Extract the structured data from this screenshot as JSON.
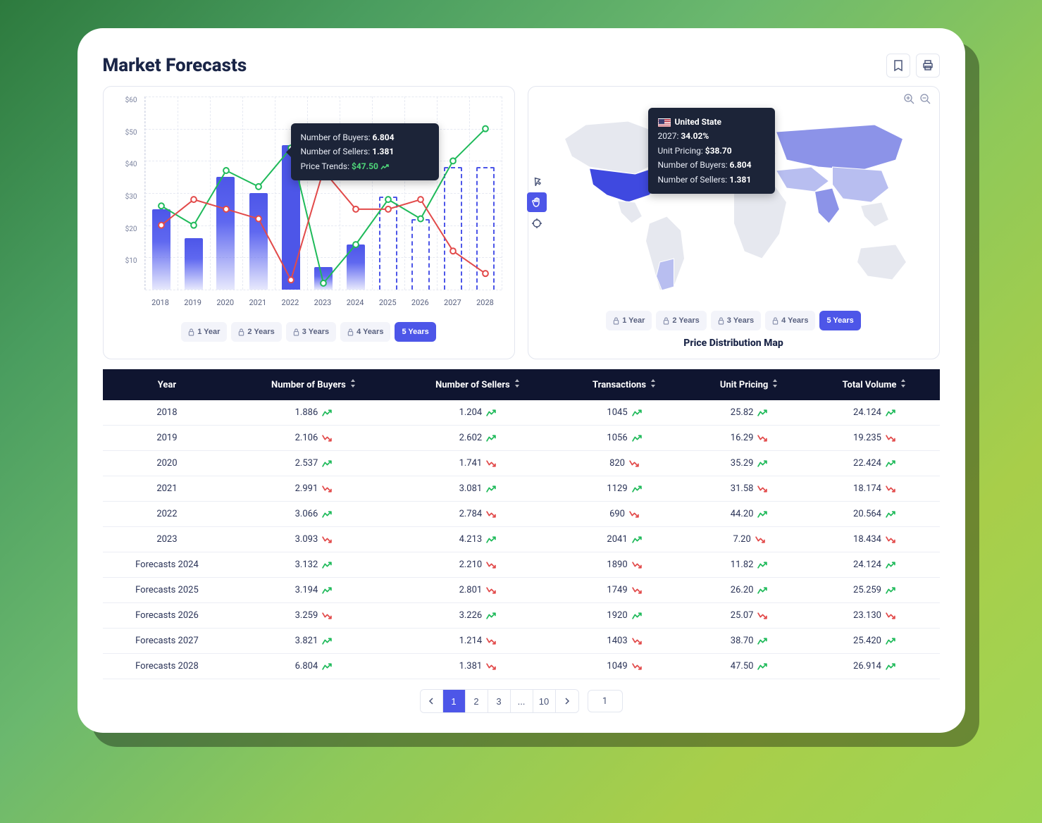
{
  "page": {
    "title": "Market Forecasts"
  },
  "chart": {
    "type": "bar+line",
    "y_ticks": [
      "$60",
      "$50",
      "$40",
      "$30",
      "$20",
      "$10",
      ""
    ],
    "ylim": [
      0,
      60
    ],
    "x_labels": [
      "2018",
      "2019",
      "2020",
      "2021",
      "2022",
      "2023",
      "2024",
      "2025",
      "2026",
      "2027",
      "2028"
    ],
    "bars": [
      25,
      16,
      35,
      30,
      45,
      7,
      14,
      29,
      22,
      38,
      38
    ],
    "future_start_index": 7,
    "active_bar_index": 4,
    "green_line": [
      26,
      20,
      37,
      32,
      44,
      2,
      14,
      28,
      22,
      40,
      50
    ],
    "red_line": [
      20,
      28,
      25,
      22,
      3,
      37,
      25,
      25,
      28,
      12,
      5
    ],
    "bar_color": "#4d56e8",
    "green_color": "#1fba5a",
    "red_color": "#e24a4a",
    "grid_color": "#e6e9f2",
    "tooltip": {
      "l1_label": "Number of Buyers:",
      "l1_val": "6.804",
      "l2_label": "Number of Sellers:",
      "l2_val": "1.381",
      "l3_label": "Price Trends:",
      "l3_val": "$47.50"
    }
  },
  "years_toggle": {
    "options": [
      "1 Year",
      "2 Years",
      "3 Years",
      "4 Years",
      "5 Years"
    ],
    "active_index": 4
  },
  "map": {
    "title": "Price Distribution Map",
    "base_color": "#e6e8ef",
    "shade_light": "#b8bef0",
    "shade_mid": "#8c93e8",
    "shade_highlight": "#3f49e0",
    "tooltip": {
      "country": "United State",
      "year_label": "2027:",
      "year_val": "34.02%",
      "price_label": "Unit Pricing:",
      "price_val": "$38.70",
      "buyers_label": "Number of Buyers:",
      "buyers_val": "6.804",
      "sellers_label": "Number of Sellers:",
      "sellers_val": "1.381"
    }
  },
  "table": {
    "columns": [
      "Year",
      "Number of Buyers",
      "Number of Sellers",
      "Transactions",
      "Unit Pricing",
      "Total Volume"
    ],
    "sortable": [
      false,
      true,
      true,
      true,
      true,
      true
    ],
    "rows": [
      {
        "year": "2018",
        "buyers": "1.886",
        "buyers_t": "up",
        "sellers": "1.204",
        "sellers_t": "up",
        "tx": "1045",
        "tx_t": "up",
        "price": "25.82",
        "price_t": "up",
        "vol": "24.124",
        "vol_t": "up"
      },
      {
        "year": "2019",
        "buyers": "2.106",
        "buyers_t": "down",
        "sellers": "2.602",
        "sellers_t": "up",
        "tx": "1056",
        "tx_t": "up",
        "price": "16.29",
        "price_t": "down",
        "vol": "19.235",
        "vol_t": "down"
      },
      {
        "year": "2020",
        "buyers": "2.537",
        "buyers_t": "up",
        "sellers": "1.741",
        "sellers_t": "down",
        "tx": "820",
        "tx_t": "down",
        "price": "35.29",
        "price_t": "up",
        "vol": "22.424",
        "vol_t": "up"
      },
      {
        "year": "2021",
        "buyers": "2.991",
        "buyers_t": "down",
        "sellers": "3.081",
        "sellers_t": "up",
        "tx": "1129",
        "tx_t": "up",
        "price": "31.58",
        "price_t": "down",
        "vol": "18.174",
        "vol_t": "down"
      },
      {
        "year": "2022",
        "buyers": "3.066",
        "buyers_t": "up",
        "sellers": "2.784",
        "sellers_t": "down",
        "tx": "690",
        "tx_t": "down",
        "price": "44.20",
        "price_t": "up",
        "vol": "20.564",
        "vol_t": "up"
      },
      {
        "year": "2023",
        "buyers": "3.093",
        "buyers_t": "down",
        "sellers": "4.213",
        "sellers_t": "up",
        "tx": "2041",
        "tx_t": "up",
        "price": "7.20",
        "price_t": "down",
        "vol": "18.434",
        "vol_t": "down"
      },
      {
        "year": "Forecasts 2024",
        "buyers": "3.132",
        "buyers_t": "up",
        "sellers": "2.210",
        "sellers_t": "down",
        "tx": "1890",
        "tx_t": "down",
        "price": "11.82",
        "price_t": "up",
        "vol": "24.124",
        "vol_t": "up"
      },
      {
        "year": "Forecasts 2025",
        "buyers": "3.194",
        "buyers_t": "up",
        "sellers": "2.801",
        "sellers_t": "down",
        "tx": "1749",
        "tx_t": "down",
        "price": "26.20",
        "price_t": "up",
        "vol": "25.259",
        "vol_t": "up"
      },
      {
        "year": "Forecasts 2026",
        "buyers": "3.259",
        "buyers_t": "down",
        "sellers": "3.226",
        "sellers_t": "up",
        "tx": "1920",
        "tx_t": "up",
        "price": "25.07",
        "price_t": "down",
        "vol": "23.130",
        "vol_t": "down"
      },
      {
        "year": "Forecasts 2027",
        "buyers": "3.821",
        "buyers_t": "up",
        "sellers": "1.214",
        "sellers_t": "down",
        "tx": "1403",
        "tx_t": "down",
        "price": "38.70",
        "price_t": "up",
        "vol": "25.420",
        "vol_t": "up"
      },
      {
        "year": "Forecasts 2028",
        "buyers": "6.804",
        "buyers_t": "up",
        "sellers": "1.381",
        "sellers_t": "down",
        "tx": "1049",
        "tx_t": "down",
        "price": "47.50",
        "price_t": "up",
        "vol": "26.914",
        "vol_t": "up"
      }
    ]
  },
  "pagination": {
    "pages": [
      "1",
      "2",
      "3",
      "...",
      "10"
    ],
    "active_index": 0,
    "jump": "1"
  }
}
